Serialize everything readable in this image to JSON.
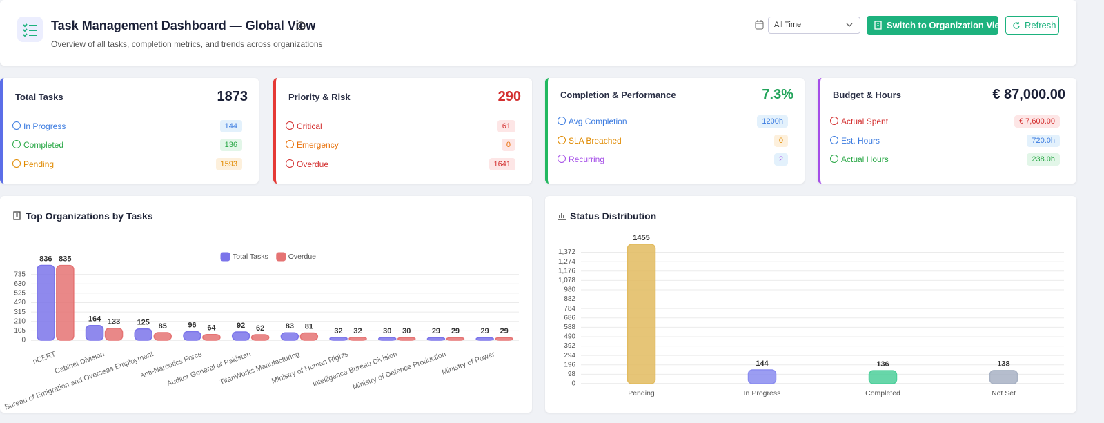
{
  "header": {
    "title": "Task Management Dashboard — Global View",
    "subtitle": "Overview of all tasks, completion metrics, and trends across organizations",
    "date_filter": "All Time",
    "primary_button": "Switch to Organization View",
    "refresh_button": "Refresh"
  },
  "cards": [
    {
      "title": "Total Tasks",
      "value": "1873",
      "rows": [
        {
          "label": "In Progress",
          "value": "144"
        },
        {
          "label": "Completed",
          "value": "136"
        },
        {
          "label": "Pending",
          "value": "1593"
        }
      ]
    },
    {
      "title": "Priority & Risk",
      "value": "290",
      "rows": [
        {
          "label": "Critical",
          "value": "61"
        },
        {
          "label": "Emergency",
          "value": "0"
        },
        {
          "label": "Overdue",
          "value": "1641"
        }
      ]
    },
    {
      "title": "Completion & Performance",
      "value": "7.3%",
      "rows": [
        {
          "label": "Avg Completion",
          "value": "1200h"
        },
        {
          "label": "SLA Breached",
          "value": "0"
        },
        {
          "label": "Recurring",
          "value": "2"
        }
      ]
    },
    {
      "title": "Budget & Hours",
      "value": "€ 87,000.00",
      "rows": [
        {
          "label": "Actual Spent",
          "value": "€ 7,600.00"
        },
        {
          "label": "Est. Hours",
          "value": "720.0h"
        },
        {
          "label": "Actual Hours",
          "value": "238.0h"
        }
      ]
    }
  ],
  "chart_data": [
    {
      "type": "grouped_bar",
      "title": "Top Organizations by Tasks",
      "categories": [
        "nCERT",
        "Cabinet Division",
        "Bureau of Emigration and Overseas Employment",
        "Anti-Narcotics Force",
        "Auditor General of Pakistan",
        "TitanWorks Manufacturing",
        "Ministry of Human Rights",
        "Intelligence Bureau Division",
        "Ministry of Defence Production",
        "Ministry of Power"
      ],
      "series": [
        {
          "name": "Total Tasks",
          "color": "#7b74ea",
          "values": [
            836,
            164,
            125,
            96,
            92,
            83,
            32,
            30,
            29,
            29
          ]
        },
        {
          "name": "Overdue",
          "color": "#e57373",
          "values": [
            835,
            133,
            85,
            64,
            62,
            81,
            32,
            30,
            29,
            29
          ]
        }
      ],
      "ylim": [
        0,
        840
      ],
      "yticks": [
        0,
        105,
        210,
        315,
        420,
        525,
        630,
        735
      ],
      "grid": true,
      "legend": "top"
    },
    {
      "type": "bar",
      "title": "Status Distribution",
      "categories": [
        "Pending",
        "In Progress",
        "Completed",
        "Not Set"
      ],
      "values": [
        1455,
        144,
        136,
        138
      ],
      "colors": [
        "#e2bb5f",
        "#8a8cf0",
        "#4ccf9a",
        "#a8b2c4"
      ],
      "ylim": [
        0,
        1455
      ],
      "yticks": [
        0,
        98,
        196,
        294,
        392,
        490,
        588,
        686,
        784,
        882,
        980,
        {
          "value": 1078,
          "label": "1,078"
        },
        {
          "value": 1176,
          "label": "1,176"
        },
        {
          "value": 1274,
          "label": "1,274"
        },
        {
          "value": 1372,
          "label": "1,372"
        }
      ],
      "grid": true
    }
  ]
}
